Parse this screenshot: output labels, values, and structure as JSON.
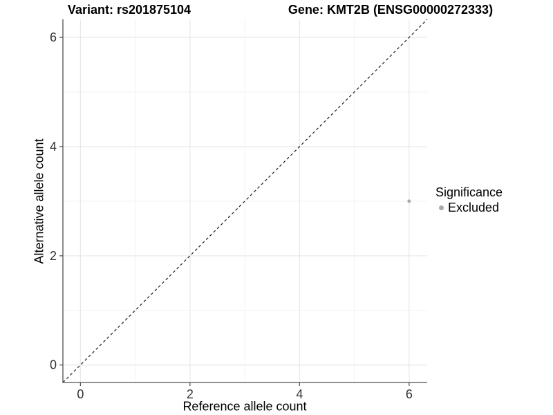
{
  "chart_data": {
    "type": "scatter",
    "title_left": "Variant: rs201875104",
    "title_right": "Gene: KMT2B (ENSG00000272333)",
    "xlabel": "Reference allele count",
    "ylabel": "Alternative allele count",
    "xlim": [
      -0.32,
      6.33
    ],
    "ylim": [
      -0.32,
      6.33
    ],
    "x_ticks": [
      0,
      2,
      4,
      6
    ],
    "y_ticks": [
      0,
      2,
      4,
      6
    ],
    "x_minor_ticks": [
      1,
      3,
      5
    ],
    "y_minor_ticks": [
      1,
      3,
      5
    ],
    "grid": "on",
    "series": [
      {
        "name": "Excluded",
        "points": [
          {
            "x": 6,
            "y": 3
          }
        ],
        "color": "#aaaaaa",
        "point_radius": 2.5
      }
    ],
    "identity_line": {
      "slope": 1,
      "intercept": 0,
      "style": "dashed",
      "color": "#1a1a1a"
    },
    "legend": {
      "position": "right",
      "title": "Significance",
      "items": [
        {
          "label": "Excluded",
          "color": "#aaaaaa"
        }
      ]
    },
    "colors": {
      "background": "#ffffff",
      "grid_major": "#e8e8e8",
      "grid_minor": "#f2f2f2",
      "axis_line": "#4d4d4d",
      "tick_label": "#333333",
      "title_text": "#000000"
    }
  }
}
